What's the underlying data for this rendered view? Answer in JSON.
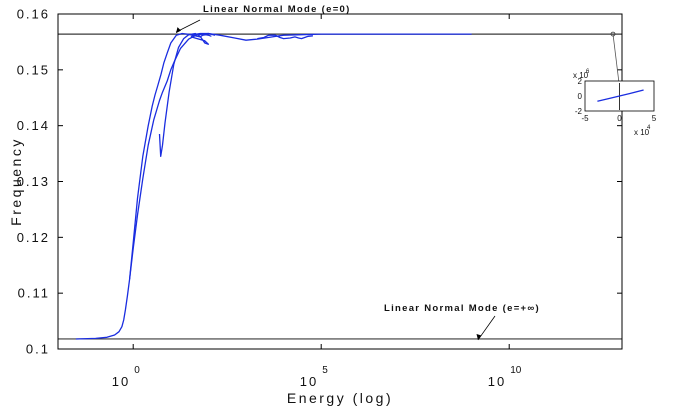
{
  "chart_data": {
    "type": "line",
    "title": "",
    "xlabel": "Energy (log)",
    "ylabel": "Frequency",
    "x_scale": "log",
    "xlim": [
      0.01,
      10000000000000
    ],
    "ylim": [
      0.1,
      0.16
    ],
    "grid": false,
    "x_ticks": [
      {
        "value": 1,
        "base": "10",
        "exp": "0"
      },
      {
        "value": 100000,
        "base": "10",
        "exp": "5"
      },
      {
        "value": 10000000000,
        "base": "10",
        "exp": "10"
      }
    ],
    "y_ticks": [
      {
        "value": 0.1,
        "label": "0.1"
      },
      {
        "value": 0.11,
        "label": "0.11"
      },
      {
        "value": 0.12,
        "label": "0.12"
      },
      {
        "value": 0.13,
        "label": "0.13"
      },
      {
        "value": 0.14,
        "label": "0.14"
      },
      {
        "value": 0.15,
        "label": "0.15"
      },
      {
        "value": 0.16,
        "label": "0.16"
      }
    ],
    "series": [
      {
        "color": "#1a2de0",
        "x": [
          0.03,
          0.1,
          0.2,
          0.32,
          0.42,
          0.5,
          0.56,
          0.62,
          0.7,
          0.8,
          1.0,
          1.3,
          1.8,
          2.5,
          3.5,
          5,
          6,
          8,
          10,
          13,
          18,
          30,
          50,
          100,
          200,
          500,
          1000,
          2000,
          5000,
          10000,
          30000,
          100000,
          300000,
          1000000,
          10000000,
          100000000,
          1000000000
        ],
        "y": [
          0.1018,
          0.1019,
          0.1021,
          0.1025,
          0.1031,
          0.104,
          0.1052,
          0.107,
          0.1095,
          0.1125,
          0.118,
          0.124,
          0.1305,
          0.1365,
          0.141,
          0.1445,
          0.146,
          0.148,
          0.15,
          0.1518,
          0.1538,
          0.1555,
          0.1563,
          0.1565,
          0.1562,
          0.1557,
          0.1553,
          0.1555,
          0.1559,
          0.1562,
          0.1563,
          0.1564,
          0.1564,
          0.1564,
          0.1564,
          0.1564,
          0.1564
        ]
      },
      {
        "color": "#1a2de0",
        "x": [
          0.8,
          1.0,
          1.3,
          1.8,
          2.5,
          3.2,
          3.8,
          4.5,
          5.5,
          6.5,
          8,
          10,
          14,
          20,
          28,
          38,
          50,
          60,
          70,
          85,
          100,
          120
        ],
        "y": [
          0.1125,
          0.119,
          0.127,
          0.1345,
          0.14,
          0.1435,
          0.1455,
          0.1472,
          0.1492,
          0.1512,
          0.153,
          0.1548,
          0.1562,
          0.1565,
          0.1564,
          0.1562,
          0.156,
          0.1559,
          0.1562,
          0.1563,
          0.1562,
          0.156
        ]
      },
      {
        "color": "#1a2de0",
        "x": [
          5,
          5.4,
          6,
          7,
          9,
          12,
          16,
          22,
          30,
          45,
          60,
          80,
          100,
          80,
          50,
          35,
          40,
          60,
          100,
          150
        ],
        "y": [
          0.1385,
          0.1345,
          0.1365,
          0.1405,
          0.146,
          0.151,
          0.154,
          0.1556,
          0.1563,
          0.1565,
          0.156,
          0.1548,
          0.1546,
          0.1552,
          0.1556,
          0.1559,
          0.1563,
          0.1565,
          0.1565,
          0.1562
        ]
      },
      {
        "color": "#1a2de0",
        "x": [
          2000,
          3000,
          4000,
          6000,
          8000,
          10000,
          15000,
          20000,
          25000,
          30000,
          45000,
          60000
        ],
        "y": [
          0.1556,
          0.1558,
          0.1562,
          0.1562,
          0.1558,
          0.1556,
          0.1557,
          0.1559,
          0.1557,
          0.1556,
          0.156,
          0.1561
        ]
      }
    ],
    "reference_lines": [
      {
        "y": 0.1564,
        "label": "Linear Normal Mode (e=0)"
      },
      {
        "y": 0.1018,
        "label": "Linear Normal Mode (e=+∞)"
      }
    ],
    "inset": {
      "x_ticks": [
        "-5",
        "0",
        "5"
      ],
      "y_ticks": [
        "2",
        "0",
        "-2"
      ],
      "x_exponent": {
        "base": "x 10",
        "exp": "4"
      },
      "y_exponent": {
        "base": "x 10",
        "exp": "6"
      },
      "x_range": [
        -5,
        5
      ],
      "y_range": [
        -2,
        2
      ],
      "series": {
        "color": "#1a2de0",
        "x": [
          -3.2,
          -1.5,
          0,
          1.5,
          3.5
        ],
        "y": [
          -0.7,
          -0.33,
          0.0,
          0.33,
          0.8
        ]
      }
    }
  }
}
